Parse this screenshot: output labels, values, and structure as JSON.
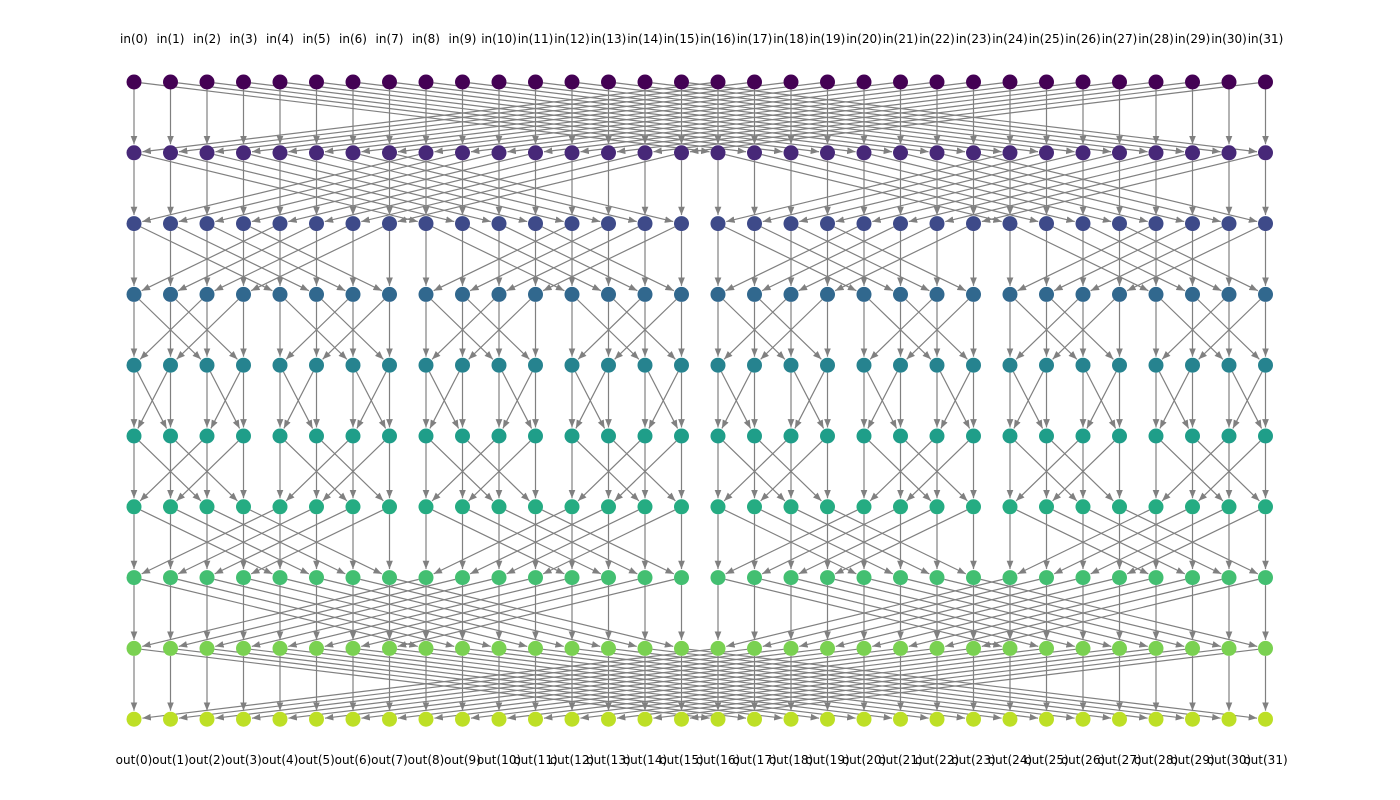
{
  "diagram": {
    "type": "butterfly-network",
    "n_inputs": 32,
    "n_layers": 10,
    "input_labels": [
      "in(0)",
      "in(1)",
      "in(2)",
      "in(3)",
      "in(4)",
      "in(5)",
      "in(6)",
      "in(7)",
      "in(8)",
      "in(9)",
      "in(10)",
      "in(11)",
      "in(12)",
      "in(13)",
      "in(14)",
      "in(15)",
      "in(16)",
      "in(17)",
      "in(18)",
      "in(19)",
      "in(20)",
      "in(21)",
      "in(22)",
      "in(23)",
      "in(24)",
      "in(25)",
      "in(26)",
      "in(27)",
      "in(28)",
      "in(29)",
      "in(30)",
      "in(31)"
    ],
    "output_labels": [
      "out(0)",
      "out(1)",
      "out(2)",
      "out(3)",
      "out(4)",
      "out(5)",
      "out(6)",
      "out(7)",
      "out(8)",
      "out(9)",
      "out(10)",
      "out(11)",
      "out(12)",
      "out(13)",
      "out(14)",
      "out(15)",
      "out(16)",
      "out(17)",
      "out(18)",
      "out(19)",
      "out(20)",
      "out(21)",
      "out(22)",
      "out(23)",
      "out(24)",
      "out(25)",
      "out(26)",
      "out(27)",
      "out(28)",
      "out(29)",
      "out(30)",
      "out(31)"
    ],
    "stage_strides": [
      16,
      8,
      4,
      2,
      1,
      2,
      4,
      8,
      16
    ],
    "layer_colors": [
      "#440154",
      "#472878",
      "#3e4a89",
      "#31688e",
      "#26838f",
      "#1f9e89",
      "#25ac82",
      "#43bf71",
      "#7ad151",
      "#bddf26"
    ],
    "edge_color": "#808080"
  }
}
